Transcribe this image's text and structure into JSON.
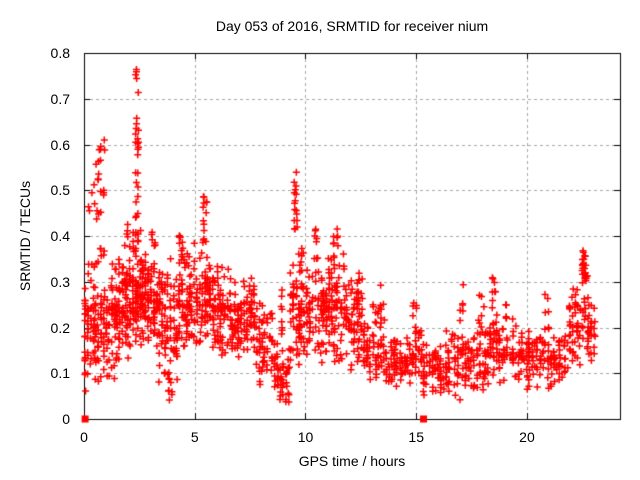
{
  "chart_data": {
    "type": "scatter",
    "title": "Day 053 of 2016, SRMTID for receiver nium",
    "xlabel": "GPS time / hours",
    "ylabel": "SRMTID / TECUs",
    "xlim": [
      0,
      24.2
    ],
    "ylim": [
      0,
      0.8
    ],
    "xticks": [
      {
        "label": "0",
        "value": 0
      },
      {
        "label": "5",
        "value": 5
      },
      {
        "label": "10",
        "value": 10
      },
      {
        "label": "15",
        "value": 15
      },
      {
        "label": "20",
        "value": 20
      }
    ],
    "yticks": [
      {
        "label": "0",
        "value": 0.0
      },
      {
        "label": "0.1",
        "value": 0.1
      },
      {
        "label": "0.2",
        "value": 0.2
      },
      {
        "label": "0.3",
        "value": 0.3
      },
      {
        "label": "0.4",
        "value": 0.4
      },
      {
        "label": "0.5",
        "value": 0.5
      },
      {
        "label": "0.6",
        "value": 0.6
      },
      {
        "label": "0.7",
        "value": 0.7
      },
      {
        "label": "0.8",
        "value": 0.8
      }
    ],
    "grid": true,
    "legend": false,
    "colors": {
      "marker": "#ff0000",
      "axis": "#000000",
      "grid": "#a9a9a9",
      "text": "#000000",
      "background": "#ffffff"
    },
    "seed": 1337,
    "series": [
      {
        "name": "SRMTID",
        "marker": "plus",
        "color": "#ff0000",
        "point_size": 7,
        "point_count_approx": 2090,
        "segments_format": [
          "x_start_h",
          "x_end_h",
          "n_points",
          "y_min_TECUs",
          "y_max_TECUs",
          "dist t=triangular u=uniform"
        ],
        "segments": [
          [
            0.02,
            0.35,
            40,
            0.03,
            0.38,
            "t"
          ],
          [
            0.35,
            0.95,
            60,
            0.06,
            0.33,
            "t"
          ],
          [
            0.18,
            0.5,
            8,
            0.33,
            0.52,
            "u"
          ],
          [
            0.5,
            0.95,
            26,
            0.33,
            0.61,
            "u"
          ],
          [
            0.95,
            1.55,
            65,
            0.08,
            0.36,
            "t"
          ],
          [
            1.55,
            2.15,
            85,
            0.12,
            0.4,
            "t"
          ],
          [
            1.8,
            2.0,
            5,
            0.36,
            0.43,
            "u"
          ],
          [
            2.15,
            2.6,
            75,
            0.15,
            0.44,
            "t"
          ],
          [
            2.33,
            2.52,
            26,
            0.44,
            0.775,
            "u"
          ],
          [
            2.6,
            3.35,
            95,
            0.14,
            0.38,
            "t"
          ],
          [
            3.0,
            3.25,
            6,
            0.36,
            0.41,
            "u"
          ],
          [
            3.35,
            4.25,
            90,
            0.05,
            0.36,
            "t"
          ],
          [
            3.6,
            4.0,
            10,
            0.04,
            0.12,
            "u"
          ],
          [
            4.25,
            5.05,
            80,
            0.14,
            0.4,
            "t"
          ],
          [
            4.3,
            4.5,
            6,
            0.36,
            0.42,
            "u"
          ],
          [
            5.05,
            5.75,
            70,
            0.15,
            0.38,
            "t"
          ],
          [
            5.35,
            5.55,
            14,
            0.38,
            0.49,
            "u"
          ],
          [
            5.75,
            6.65,
            80,
            0.13,
            0.35,
            "t"
          ],
          [
            6.65,
            7.4,
            70,
            0.11,
            0.31,
            "t"
          ],
          [
            7.4,
            7.75,
            30,
            0.15,
            0.33,
            "t"
          ],
          [
            7.75,
            8.55,
            55,
            0.07,
            0.27,
            "t"
          ],
          [
            8.55,
            9.3,
            50,
            0.02,
            0.18,
            "t"
          ],
          [
            8.85,
            9.0,
            8,
            0.18,
            0.3,
            "u"
          ],
          [
            9.3,
            10.0,
            75,
            0.1,
            0.4,
            "t"
          ],
          [
            9.45,
            9.65,
            16,
            0.4,
            0.545,
            "u"
          ],
          [
            10.0,
            11.0,
            85,
            0.1,
            0.36,
            "t"
          ],
          [
            10.35,
            10.6,
            8,
            0.34,
            0.42,
            "u"
          ],
          [
            11.0,
            11.8,
            75,
            0.12,
            0.37,
            "t"
          ],
          [
            11.25,
            11.5,
            8,
            0.35,
            0.425,
            "u"
          ],
          [
            11.8,
            12.6,
            70,
            0.1,
            0.33,
            "t"
          ],
          [
            12.6,
            13.6,
            65,
            0.07,
            0.27,
            "t"
          ],
          [
            13.25,
            13.45,
            6,
            0.2,
            0.3,
            "u"
          ],
          [
            13.6,
            14.8,
            70,
            0.06,
            0.2,
            "t"
          ],
          [
            14.8,
            15.3,
            35,
            0.07,
            0.22,
            "t"
          ],
          [
            14.85,
            15.05,
            5,
            0.2,
            0.26,
            "u"
          ],
          [
            15.3,
            16.3,
            60,
            0.04,
            0.18,
            "t"
          ],
          [
            16.3,
            17.3,
            65,
            0.03,
            0.21,
            "t"
          ],
          [
            16.95,
            17.15,
            6,
            0.21,
            0.3,
            "u"
          ],
          [
            17.3,
            18.3,
            65,
            0.06,
            0.22,
            "t"
          ],
          [
            17.8,
            18.1,
            7,
            0.2,
            0.28,
            "u"
          ],
          [
            18.3,
            18.7,
            30,
            0.08,
            0.24,
            "t"
          ],
          [
            18.4,
            18.6,
            8,
            0.24,
            0.31,
            "u"
          ],
          [
            18.7,
            19.8,
            60,
            0.07,
            0.22,
            "t"
          ],
          [
            19.0,
            19.15,
            5,
            0.22,
            0.285,
            "u"
          ],
          [
            19.8,
            20.9,
            60,
            0.06,
            0.2,
            "t"
          ],
          [
            20.75,
            21.0,
            7,
            0.18,
            0.28,
            "u"
          ],
          [
            20.9,
            21.9,
            55,
            0.06,
            0.19,
            "t"
          ],
          [
            21.9,
            22.45,
            45,
            0.1,
            0.3,
            "t"
          ],
          [
            22.45,
            22.8,
            30,
            0.15,
            0.37,
            "u"
          ],
          [
            22.5,
            22.7,
            10,
            0.3,
            0.365,
            "u"
          ],
          [
            22.75,
            23.1,
            25,
            0.1,
            0.28,
            "t"
          ]
        ]
      },
      {
        "name": "axis flag markers",
        "marker": "filled-square",
        "color": "#ff0000",
        "point_size": 7,
        "points": [
          [
            0.05,
            0
          ],
          [
            15.33,
            0
          ]
        ]
      }
    ]
  }
}
